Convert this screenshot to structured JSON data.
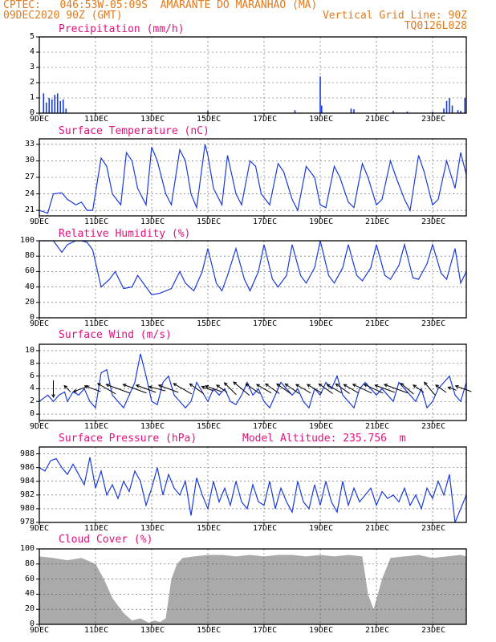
{
  "header": {
    "line1_left": "CPTEC:   046:53W-05:09S  AMARANTE DO MARANHAO (MA)",
    "line2_left": "09DEC2020 90Z (GMT)",
    "line2_right": "Vertical Grid Line: 90Z",
    "line3_right": "TQ0126L028"
  },
  "x_ticks": [
    "9DEC",
    "11DEC",
    "13DEC",
    "15DEC",
    "17DEC",
    "19DEC",
    "21DEC",
    "23DEC"
  ],
  "x_tick_days": [
    0,
    2,
    4,
    6,
    8,
    10,
    12,
    14
  ],
  "x_range_days": [
    0,
    15.2
  ],
  "colors": {
    "line": "#1a3bd9",
    "title": "#e0117a",
    "header": "#e07a1f",
    "cloud": "#aaaaaa",
    "grid": "#555555"
  },
  "chart_data": [
    {
      "type": "bar",
      "title": "Precipitation (mm/h)",
      "ylim": [
        0,
        5
      ],
      "yticks": [
        0,
        1,
        2,
        3,
        4,
        5
      ],
      "grid": true,
      "x_unit": "days since 09DEC2020 90Z",
      "x": [
        0.15,
        0.25,
        0.35,
        0.45,
        0.55,
        0.65,
        0.75,
        0.85,
        0.95,
        2.0,
        6.0,
        9.1,
        10.0,
        10.05,
        11.1,
        11.2,
        12.6,
        13.1,
        14.0,
        14.4,
        14.5,
        14.6,
        14.7,
        14.9,
        15.0,
        15.15
      ],
      "values": [
        1.3,
        0.7,
        1.0,
        0.9,
        1.2,
        1.3,
        0.8,
        0.9,
        0.3,
        0.05,
        0.15,
        0.2,
        2.4,
        0.5,
        0.3,
        0.25,
        0.15,
        0.1,
        0.1,
        0.3,
        0.8,
        1.0,
        0.5,
        0.2,
        0.15,
        1.0
      ]
    },
    {
      "type": "line",
      "title": "Surface Temperature (nC)",
      "ylim": [
        20,
        34
      ],
      "yticks": [
        21,
        24,
        27,
        30,
        33
      ],
      "grid": true,
      "x_unit": "days since 09DEC2020 90Z",
      "x": [
        0,
        0.3,
        0.5,
        0.8,
        1.0,
        1.3,
        1.5,
        1.7,
        1.9,
        2.2,
        2.4,
        2.6,
        2.9,
        3.1,
        3.3,
        3.5,
        3.8,
        4.0,
        4.2,
        4.5,
        4.7,
        5.0,
        5.2,
        5.4,
        5.6,
        5.9,
        6.0,
        6.2,
        6.5,
        6.7,
        7.0,
        7.2,
        7.5,
        7.7,
        7.9,
        8.2,
        8.5,
        8.7,
        9.0,
        9.2,
        9.5,
        9.8,
        10.0,
        10.2,
        10.5,
        10.7,
        11.0,
        11.2,
        11.5,
        11.7,
        12.0,
        12.2,
        12.5,
        12.7,
        13.0,
        13.2,
        13.5,
        13.7,
        14.0,
        14.2,
        14.5,
        14.8,
        15.0,
        15.2
      ],
      "values": [
        21,
        20.5,
        24,
        24.2,
        23,
        22,
        22.5,
        21,
        21,
        30.5,
        29,
        24,
        22,
        31.5,
        30,
        25,
        22,
        32.5,
        30,
        24,
        22,
        32,
        30,
        24,
        21.5,
        33,
        31,
        25,
        22,
        31,
        24,
        22,
        30,
        29,
        24,
        22,
        29.5,
        28,
        23,
        21,
        29,
        27,
        22,
        21.5,
        29,
        27,
        22.5,
        21.5,
        29.5,
        27,
        22,
        23,
        30,
        27,
        23,
        21,
        31,
        28,
        22,
        23,
        30,
        25,
        31.5,
        27.5
      ]
    },
    {
      "type": "line",
      "title": "Relative Humidity (%)",
      "ylim": [
        0,
        100
      ],
      "yticks": [
        0,
        20,
        40,
        60,
        80,
        100
      ],
      "grid": true,
      "x_unit": "days since 09DEC2020 90Z",
      "x": [
        0,
        0.3,
        0.5,
        0.8,
        1.0,
        1.3,
        1.5,
        1.7,
        1.9,
        2.2,
        2.5,
        2.7,
        3.0,
        3.3,
        3.5,
        3.8,
        4.0,
        4.3,
        4.5,
        4.7,
        5.0,
        5.2,
        5.5,
        5.8,
        6.0,
        6.3,
        6.5,
        6.7,
        7.0,
        7.3,
        7.5,
        7.8,
        8.0,
        8.3,
        8.5,
        8.8,
        9.0,
        9.3,
        9.5,
        9.8,
        10.0,
        10.3,
        10.5,
        10.8,
        11.0,
        11.3,
        11.5,
        11.8,
        12.0,
        12.3,
        12.5,
        12.8,
        13.0,
        13.3,
        13.5,
        13.8,
        14.0,
        14.3,
        14.5,
        14.8,
        15.0,
        15.2
      ],
      "values": [
        100,
        100,
        100,
        85,
        95,
        100,
        100,
        98,
        88,
        40,
        50,
        60,
        38,
        40,
        55,
        40,
        30,
        32,
        35,
        38,
        60,
        45,
        35,
        60,
        90,
        45,
        35,
        55,
        90,
        50,
        35,
        60,
        95,
        50,
        40,
        55,
        95,
        55,
        45,
        65,
        100,
        55,
        45,
        65,
        95,
        55,
        48,
        65,
        95,
        55,
        50,
        68,
        95,
        52,
        50,
        70,
        95,
        58,
        50,
        90,
        45,
        60
      ]
    },
    {
      "type": "line",
      "title": "Surface Wind (m/s)",
      "ylim": [
        -1,
        11
      ],
      "yticks": [
        0,
        2,
        4,
        6,
        8,
        10
      ],
      "grid": true,
      "x_unit": "days since 09DEC2020 90Z",
      "x": [
        0,
        0.3,
        0.5,
        0.7,
        0.9,
        1.0,
        1.2,
        1.4,
        1.6,
        1.8,
        2.0,
        2.2,
        2.4,
        2.6,
        2.8,
        3.0,
        3.2,
        3.4,
        3.6,
        3.8,
        4.0,
        4.2,
        4.4,
        4.6,
        4.8,
        5.0,
        5.2,
        5.4,
        5.6,
        5.8,
        6.0,
        6.2,
        6.4,
        6.6,
        6.8,
        7.0,
        7.2,
        7.4,
        7.6,
        7.8,
        8.0,
        8.2,
        8.4,
        8.6,
        8.8,
        9.0,
        9.2,
        9.4,
        9.6,
        9.8,
        10.0,
        10.2,
        10.4,
        10.6,
        10.8,
        11.0,
        11.2,
        11.4,
        11.6,
        11.8,
        12.0,
        12.2,
        12.4,
        12.6,
        12.8,
        13.0,
        13.2,
        13.4,
        13.6,
        13.8,
        14.0,
        14.2,
        14.4,
        14.6,
        14.8,
        15.0,
        15.2
      ],
      "values": [
        2,
        3,
        2,
        3,
        3.5,
        2,
        3.5,
        3,
        4,
        2,
        1,
        6.5,
        7,
        3,
        2,
        1,
        3,
        5,
        9.5,
        6,
        2,
        1.5,
        5,
        6,
        3,
        2,
        1,
        2,
        5,
        3.5,
        2,
        4,
        3,
        4,
        2,
        1.5,
        3,
        5,
        3,
        4,
        2,
        1,
        3,
        5,
        4,
        3,
        4,
        2,
        1,
        4,
        3,
        5,
        4,
        6,
        3,
        2,
        1,
        4,
        5,
        4,
        3,
        4,
        3,
        2,
        5,
        4,
        3,
        2,
        4,
        1,
        2,
        4,
        5,
        6,
        3,
        2,
        5
      ]
    },
    {
      "type": "line",
      "title": "Surface Pressure (hPa)",
      "annotation": "Model Altitude: 235.756  m",
      "ylim": [
        978,
        989
      ],
      "yticks": [
        978,
        980,
        982,
        984,
        986,
        988
      ],
      "grid": true,
      "x_unit": "days since 09DEC2020 90Z",
      "x": [
        0,
        0.2,
        0.4,
        0.6,
        0.8,
        1.0,
        1.2,
        1.4,
        1.6,
        1.8,
        2.0,
        2.2,
        2.4,
        2.6,
        2.8,
        3.0,
        3.2,
        3.4,
        3.6,
        3.8,
        4.0,
        4.2,
        4.4,
        4.6,
        4.8,
        5.0,
        5.2,
        5.4,
        5.6,
        5.8,
        6.0,
        6.2,
        6.4,
        6.6,
        6.8,
        7.0,
        7.2,
        7.4,
        7.6,
        7.8,
        8.0,
        8.2,
        8.4,
        8.6,
        8.8,
        9.0,
        9.2,
        9.4,
        9.6,
        9.8,
        10.0,
        10.2,
        10.4,
        10.6,
        10.8,
        11.0,
        11.2,
        11.4,
        11.6,
        11.8,
        12.0,
        12.2,
        12.4,
        12.6,
        12.8,
        13.0,
        13.2,
        13.4,
        13.6,
        13.8,
        14.0,
        14.2,
        14.4,
        14.6,
        14.8,
        15.0,
        15.2
      ],
      "values": [
        986,
        985.5,
        987,
        987.3,
        986,
        985,
        986.5,
        985,
        983.5,
        987.5,
        983,
        985.5,
        982,
        983.5,
        981.5,
        984,
        982.5,
        985.5,
        984,
        980.5,
        983,
        986,
        982,
        985,
        983,
        982,
        984,
        979,
        984.5,
        982,
        980,
        984,
        981,
        983,
        980.5,
        984,
        981,
        980,
        983.5,
        981,
        980.5,
        984,
        980,
        983,
        981,
        979.5,
        984,
        981,
        980,
        983.5,
        980.5,
        984,
        981,
        979.5,
        984,
        980.5,
        983,
        981,
        982,
        983,
        980.5,
        982.5,
        981.5,
        982,
        981,
        983,
        980.5,
        982,
        980,
        983,
        981.5,
        984,
        982,
        985,
        978,
        980,
        982
      ]
    },
    {
      "type": "area",
      "title": "Cloud Cover (%)",
      "ylim": [
        0,
        100
      ],
      "yticks": [
        0,
        20,
        40,
        60,
        80,
        100
      ],
      "grid": true,
      "x_unit": "days since 09DEC2020 90Z",
      "x": [
        0,
        0.5,
        1.0,
        1.5,
        2.0,
        2.3,
        2.6,
        2.9,
        3.0,
        3.3,
        3.6,
        3.9,
        4.1,
        4.3,
        4.5,
        4.7,
        4.9,
        5.1,
        5.5,
        6.0,
        6.5,
        7.0,
        7.5,
        8.0,
        8.5,
        9.0,
        9.5,
        10.0,
        10.5,
        11.0,
        11.5,
        11.7,
        11.9,
        12.2,
        12.5,
        13.0,
        13.5,
        14.0,
        14.5,
        15.0,
        15.2
      ],
      "values": [
        90,
        88,
        85,
        88,
        80,
        60,
        35,
        20,
        15,
        5,
        8,
        2,
        5,
        3,
        8,
        60,
        80,
        88,
        90,
        92,
        92,
        90,
        92,
        90,
        92,
        92,
        90,
        92,
        90,
        92,
        90,
        40,
        20,
        60,
        88,
        90,
        92,
        88,
        90,
        92,
        90
      ]
    }
  ],
  "wind_arrows": {
    "x": [
      0.5,
      1.0,
      1.5,
      1.9,
      2.4,
      2.8,
      3.4,
      3.8,
      4.2,
      4.6,
      5.1,
      5.6,
      6.0,
      6.2,
      6.5,
      6.8,
      7.2,
      7.6,
      8.0,
      8.3,
      8.7,
      9.0,
      9.4,
      9.8,
      10.2,
      10.5,
      10.8,
      11.1,
      11.5,
      11.9,
      12.3,
      12.7,
      13.1,
      13.5,
      13.9,
      14.3,
      14.7,
      15.1
    ],
    "speed": [
      3,
      1,
      3,
      3,
      4,
      5,
      5,
      4,
      3,
      4,
      4,
      3,
      2,
      3,
      2,
      3,
      4,
      3,
      3,
      3,
      3,
      3,
      3,
      3,
      3,
      3,
      3,
      3,
      4,
      4,
      4,
      5,
      3,
      2,
      3,
      2,
      1,
      3
    ],
    "angle_deg": [
      90,
      225,
      160,
      200,
      210,
      200,
      200,
      200,
      195,
      200,
      210,
      215,
      200,
      200,
      215,
      225,
      220,
      215,
      210,
      215,
      215,
      215,
      210,
      210,
      215,
      210,
      215,
      210,
      205,
      205,
      200,
      200,
      220,
      215,
      230,
      215,
      200,
      200
    ]
  }
}
